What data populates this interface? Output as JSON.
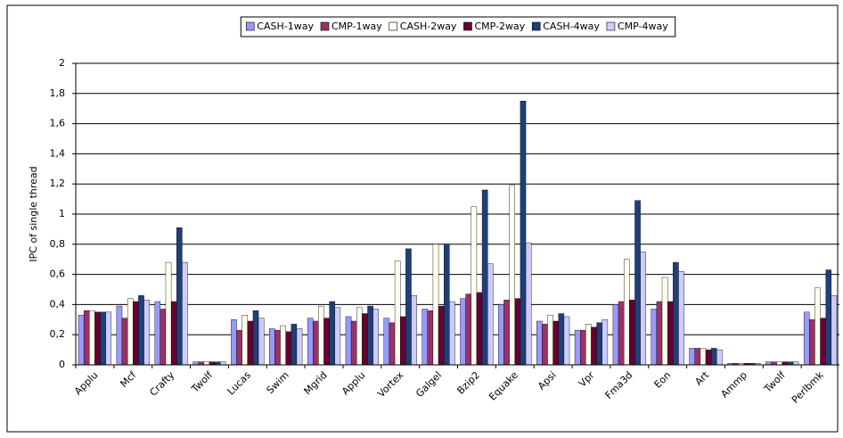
{
  "chart_data": {
    "type": "bar",
    "y_label": "IPC of single thread",
    "categories": [
      "Applu",
      "Mcf",
      "Crafty",
      "Twolf",
      "Lucas",
      "Swim",
      "Mgrid",
      "Applu",
      "Vortex",
      "Galgel",
      "Bzip2",
      "Equake",
      "Apsi",
      "Vpr",
      "Fma3d",
      "Eon",
      "Art",
      "Ammp",
      "Twolf",
      "Perlbmk"
    ],
    "series": [
      {
        "name": "CASH-1way",
        "color": "#9999ff",
        "values": [
          0.33,
          0.39,
          0.42,
          0.02,
          0.3,
          0.24,
          0.31,
          0.32,
          0.31,
          0.37,
          0.44,
          0.4,
          0.29,
          0.23,
          0.4,
          0.37,
          0.11,
          0.01,
          0.02,
          0.35
        ]
      },
      {
        "name": "CMP-1way",
        "color": "#993366",
        "values": [
          0.36,
          0.31,
          0.37,
          0.02,
          0.23,
          0.23,
          0.29,
          0.29,
          0.28,
          0.36,
          0.47,
          0.43,
          0.27,
          0.23,
          0.42,
          0.42,
          0.11,
          0.01,
          0.02,
          0.3
        ]
      },
      {
        "name": "CASH-2way",
        "color": "#ffffee",
        "values": [
          0.36,
          0.44,
          0.68,
          0.02,
          0.33,
          0.26,
          0.39,
          0.38,
          0.69,
          0.8,
          1.05,
          1.19,
          0.33,
          0.27,
          0.7,
          0.58,
          0.11,
          0.01,
          0.02,
          0.51
        ]
      },
      {
        "name": "CMP-2way",
        "color": "#660033",
        "values": [
          0.35,
          0.42,
          0.42,
          0.02,
          0.29,
          0.22,
          0.31,
          0.34,
          0.32,
          0.39,
          0.48,
          0.44,
          0.29,
          0.25,
          0.43,
          0.42,
          0.1,
          0.01,
          0.02,
          0.31
        ]
      },
      {
        "name": "CASH-4way",
        "color": "#1f3f78",
        "values": [
          0.35,
          0.46,
          0.91,
          0.02,
          0.36,
          0.27,
          0.42,
          0.39,
          0.77,
          0.8,
          1.16,
          1.75,
          0.34,
          0.28,
          1.09,
          0.68,
          0.11,
          0.01,
          0.02,
          0.63
        ]
      },
      {
        "name": "CMP-4way",
        "color": "#ccccff",
        "values": [
          0.35,
          0.43,
          0.68,
          0.02,
          0.31,
          0.24,
          0.38,
          0.37,
          0.46,
          0.42,
          0.67,
          0.81,
          0.32,
          0.3,
          0.75,
          0.62,
          0.1,
          0.01,
          0.02,
          0.46
        ]
      }
    ],
    "ylim": [
      0,
      2
    ],
    "yticks": [
      0,
      {
        "value": 0.2,
        "label": "0,2"
      },
      {
        "value": 0.4,
        "label": "0,4"
      },
      {
        "value": 0.6,
        "label": "0,6"
      },
      {
        "value": 0.8,
        "label": "0,8"
      },
      1,
      {
        "value": 1.2,
        "label": "1,2"
      },
      {
        "value": 1.4,
        "label": "1,4"
      },
      {
        "value": 1.6,
        "label": "1,6"
      },
      {
        "value": 1.8,
        "label": "1,8"
      },
      2
    ],
    "grid": true
  }
}
